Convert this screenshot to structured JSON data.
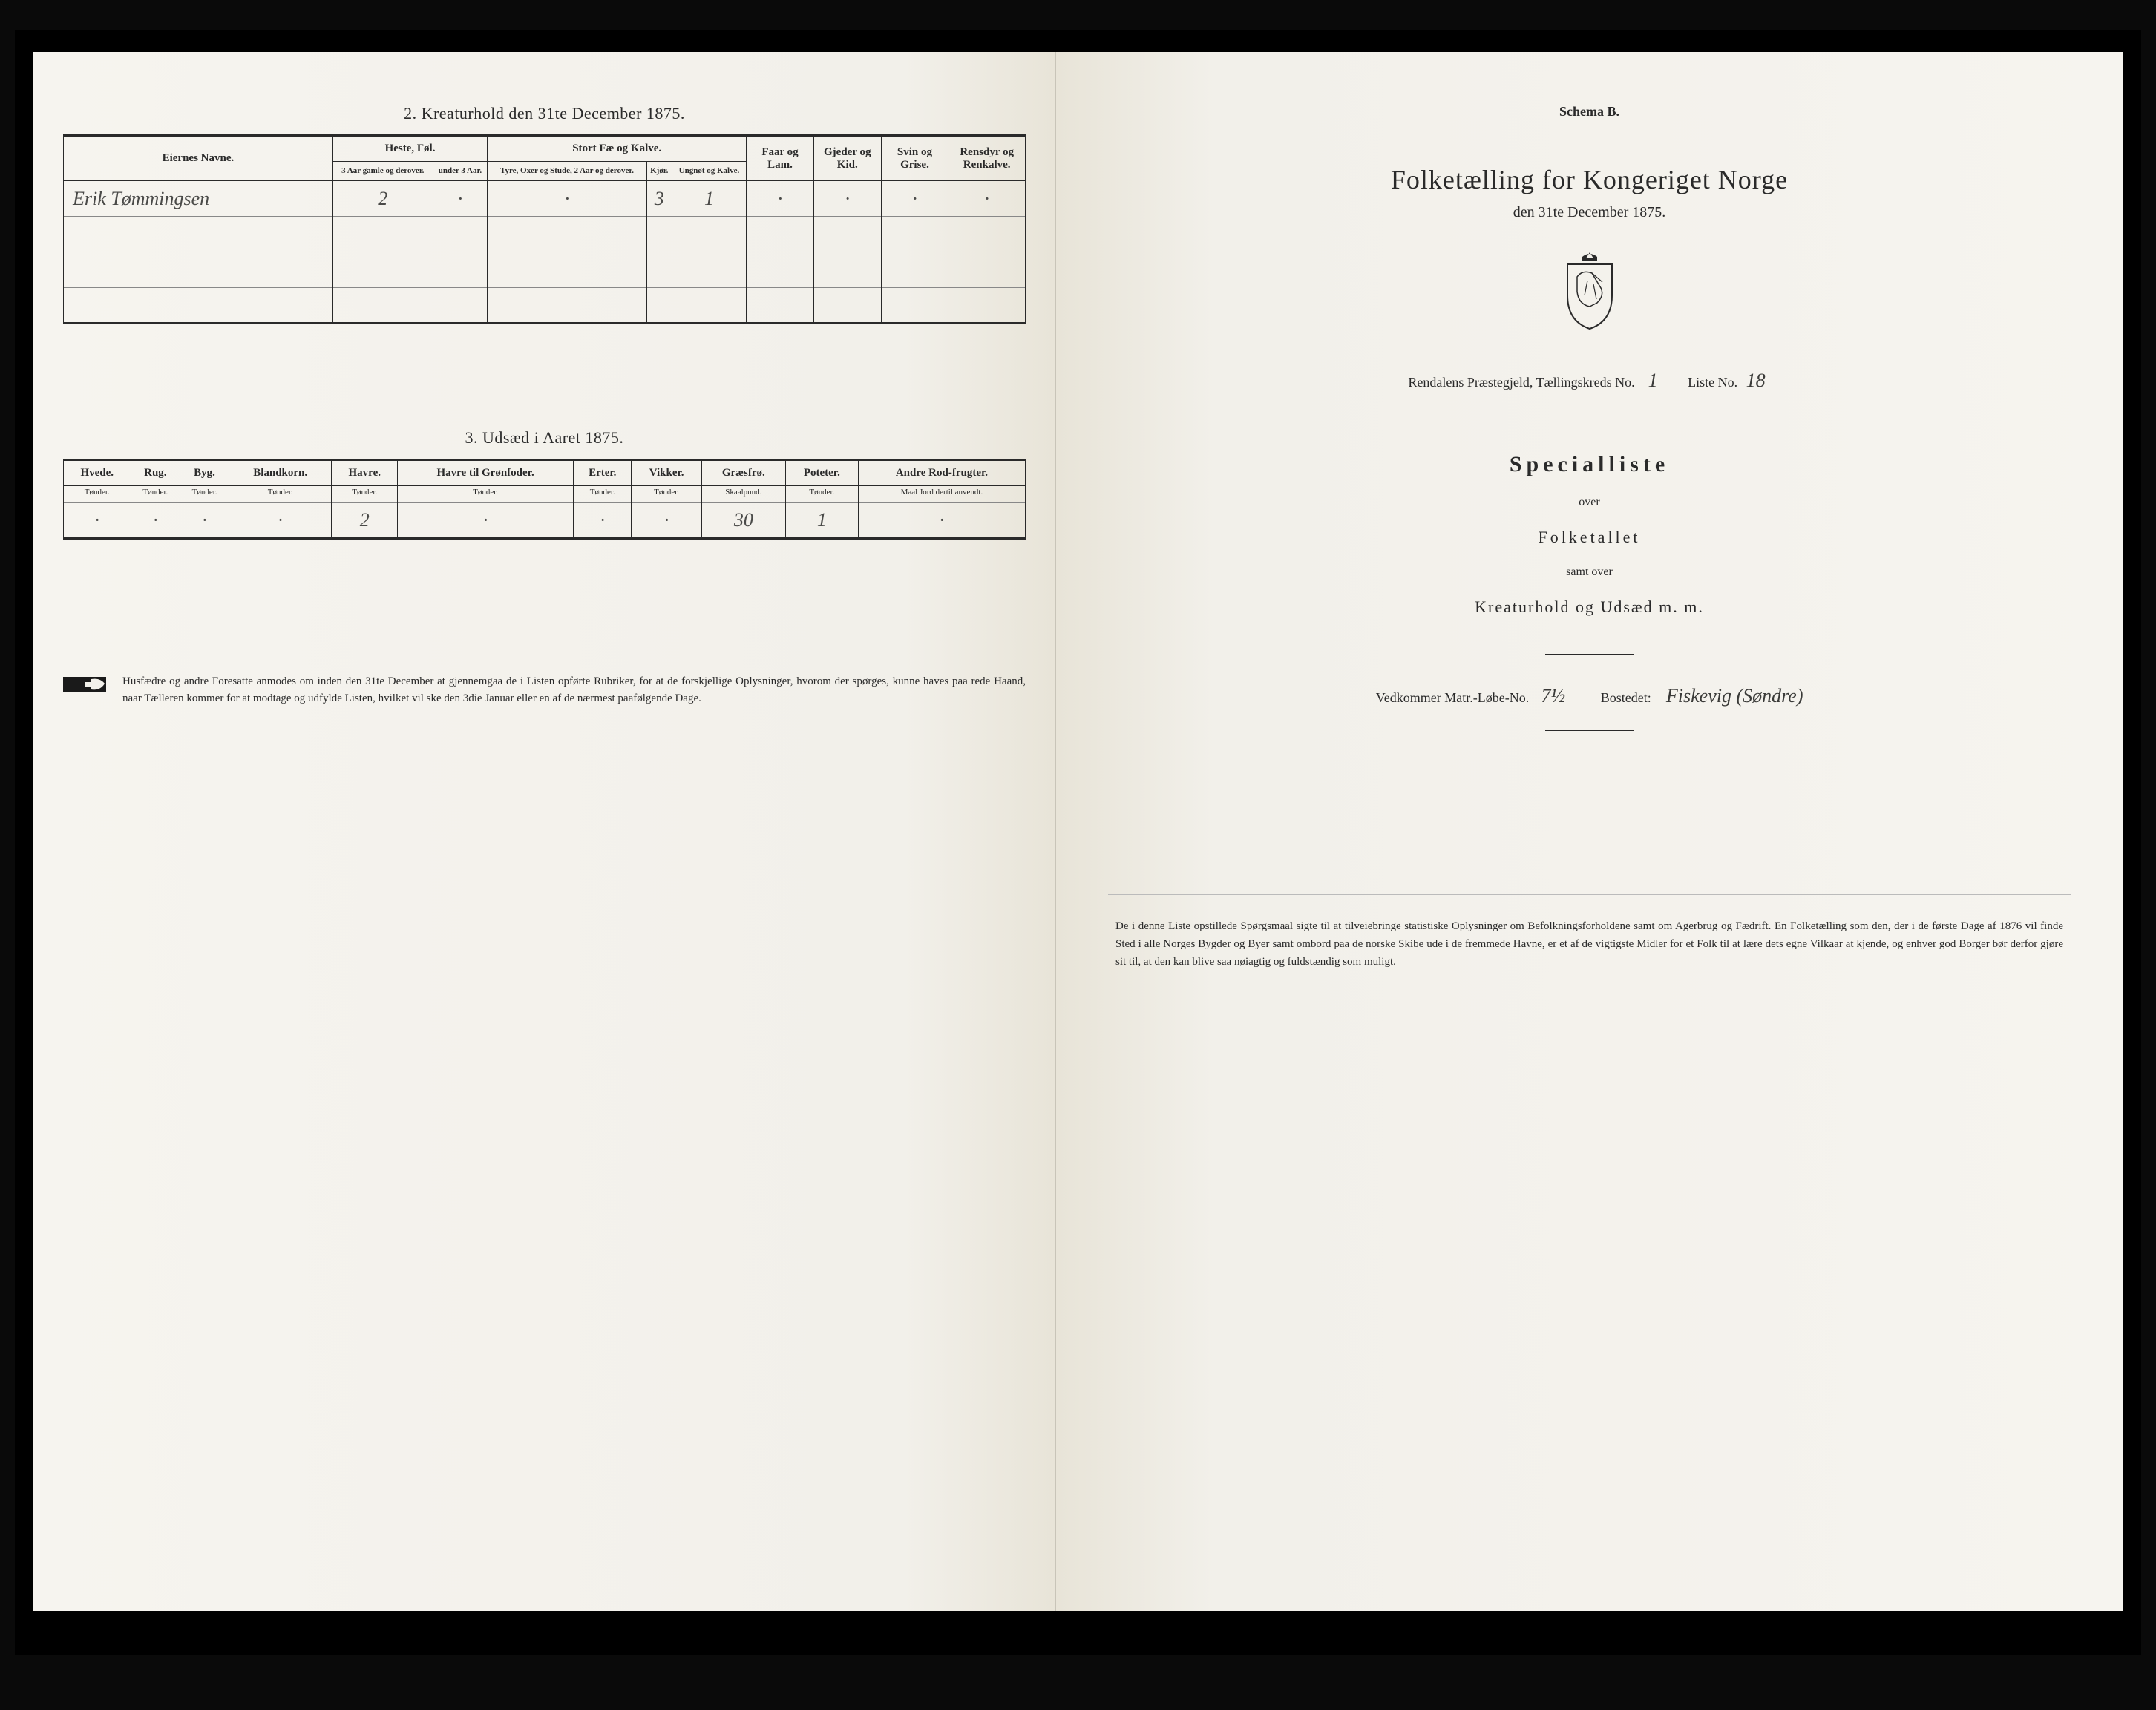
{
  "left": {
    "section2": {
      "title": "2.  Kreaturhold den 31te December 1875.",
      "headers": {
        "owner": "Eiernes Navne.",
        "horses": "Heste, Føl.",
        "horses_sub": [
          "3 Aar gamle og derover.",
          "under 3 Aar."
        ],
        "cattle": "Stort Fæ og Kalve.",
        "cattle_sub": [
          "Tyre, Oxer og Stude, 2 Aar og derover.",
          "Kjør.",
          "Ungnøt og Kalve."
        ],
        "sheep": "Faar og Lam.",
        "goats": "Gjeder og Kid.",
        "pigs": "Svin og Grise.",
        "reindeer": "Rensdyr og Renkalve."
      },
      "rows": [
        {
          "owner": "Erik Tømmingsen",
          "h1": "2",
          "h2": "·",
          "c1": "·",
          "c2": "3",
          "c3": "1",
          "sheep": "·",
          "goats": "·",
          "pigs": "·",
          "rein": "·"
        },
        {
          "owner": "",
          "h1": "",
          "h2": "",
          "c1": "",
          "c2": "",
          "c3": "",
          "sheep": "",
          "goats": "",
          "pigs": "",
          "rein": ""
        },
        {
          "owner": "",
          "h1": "",
          "h2": "",
          "c1": "",
          "c2": "",
          "c3": "",
          "sheep": "",
          "goats": "",
          "pigs": "",
          "rein": ""
        },
        {
          "owner": "",
          "h1": "",
          "h2": "",
          "c1": "",
          "c2": "",
          "c3": "",
          "sheep": "",
          "goats": "",
          "pigs": "",
          "rein": ""
        }
      ]
    },
    "section3": {
      "title": "3.  Udsæd i Aaret 1875.",
      "cols": [
        "Hvede.",
        "Rug.",
        "Byg.",
        "Blandkorn.",
        "Havre.",
        "Havre til Grønfoder.",
        "Erter.",
        "Vikker.",
        "Græsfrø.",
        "Poteter.",
        "Andre Rod-frugter."
      ],
      "units": [
        "Tønder.",
        "Tønder.",
        "Tønder.",
        "Tønder.",
        "Tønder.",
        "Tønder.",
        "Tønder.",
        "Tønder.",
        "Skaalpund.",
        "Tønder.",
        "Maal Jord dertil anvendt."
      ],
      "row": [
        "·",
        "·",
        "·",
        "·",
        "2",
        "·",
        "·",
        "·",
        "30",
        "1",
        "·"
      ]
    },
    "footer": "Husfædre og andre Foresatte anmodes om inden den 31te December at gjennemgaa de i Listen opførte Rubriker, for at de forskjellige Oplysninger, hvorom der spørges, kunne haves paa rede Haand, naar Tælleren kommer for at modtage og udfylde Listen, hvilket vil ske den 3die Januar eller en af de nærmest paafølgende Dage."
  },
  "right": {
    "schema": "Schema B.",
    "title": "Folketælling for Kongeriget Norge",
    "subtitle": "den 31te December 1875.",
    "district": {
      "prefix": "Rendalens Præstegjeld,  Tællingskreds No.",
      "kreds": "1",
      "liste_label": "Liste No.",
      "liste": "18"
    },
    "special": "Specialliste",
    "over": "over",
    "folketallet": "Folketallet",
    "samt": "samt over",
    "kreatur": "Kreaturhold og Udsæd m. m.",
    "vedkommer": {
      "matr_label": "Vedkommer Matr.-Løbe-No.",
      "matr": "7½",
      "bosted_label": "Bostedet:",
      "bosted": "Fiskevig (Søndre)"
    },
    "footer": "De i denne Liste opstillede Spørgsmaal sigte til at tilveiebringe statistiske Oplysninger om Befolkningsforholdene samt om Agerbrug og Fædrift.  En Folketælling som den, der i de første Dage af 1876 vil finde Sted i alle Norges Bygder og Byer samt ombord paa de norske Skibe ude i de fremmede Havne, er et af de vigtigste Midler for et Folk til at lære dets egne Vilkaar at kjende, og enhver god Borger bør derfor gjøre sit til, at den kan blive saa nøiagtig og fuldstændig som muligt."
  }
}
